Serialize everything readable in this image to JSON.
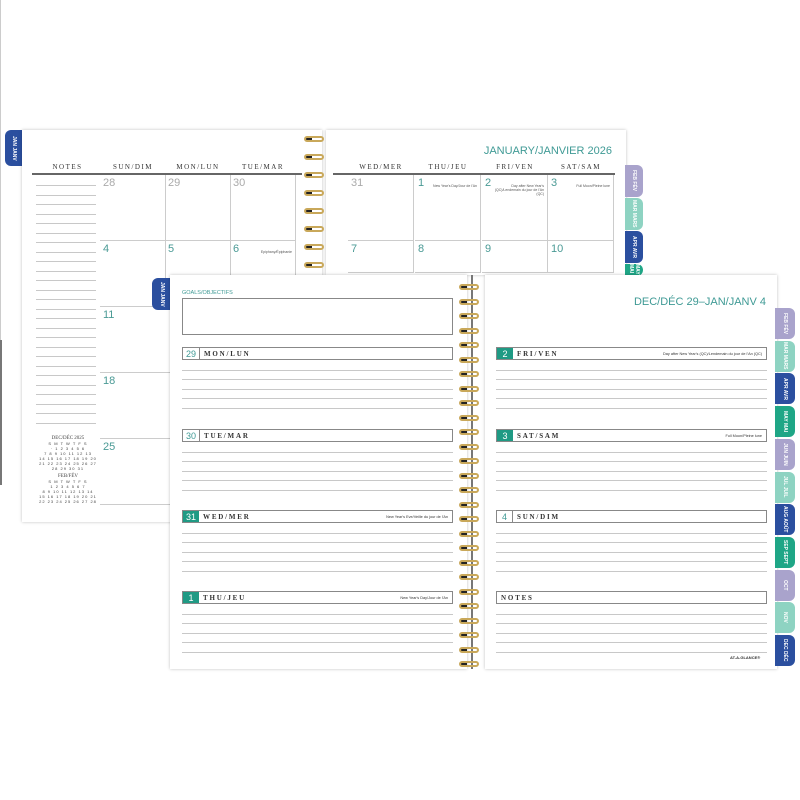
{
  "colors": {
    "lavender": "#a9a3cc",
    "mint": "#8ed3c2",
    "navy": "#2b4f9f",
    "green": "#1fa686",
    "teal_text": "#3f9a95"
  },
  "back_planner": {
    "tab_label": "JAN JANV",
    "title": "JANUARY/JANVIER 2026",
    "notes_header": "NOTES",
    "columns": [
      "SUN/DIM",
      "MON/LUN",
      "TUE/MAR",
      "WED/MER",
      "THU/JEU",
      "FRI/VEN",
      "SAT/SAM"
    ],
    "week1": [
      {
        "n": "28",
        "gray": true
      },
      {
        "n": "29",
        "gray": true
      },
      {
        "n": "30",
        "gray": true
      },
      {
        "n": "31",
        "gray": true
      },
      {
        "n": "1",
        "holiday": "New Year's Day/Jour de l'An"
      },
      {
        "n": "2",
        "holiday": "Day after New Year's (QC)/Lendemain du jour de l'An (QC)"
      },
      {
        "n": "3",
        "holiday": "Full Moon/Pleine lune"
      }
    ],
    "week2": [
      {
        "n": "4"
      },
      {
        "n": "5"
      },
      {
        "n": "6",
        "holiday": "Epiphany/Épiphanie"
      },
      {
        "n": "7"
      },
      {
        "n": "8"
      },
      {
        "n": "9"
      },
      {
        "n": "10"
      }
    ],
    "left_dates": [
      "11",
      "18",
      "25"
    ],
    "mini_calendars": [
      {
        "title": "DEC/DÉC 2025"
      },
      {
        "title": "FEB/FÉV"
      }
    ],
    "side_tabs": [
      "FEB FÉV",
      "MAR MARS",
      "APR AVR",
      "MAY MAI"
    ]
  },
  "front_planner": {
    "tab_label": "JAN JANV",
    "goals_label": "GOALS/OBJECTIFS",
    "title": "DEC/DÉC 29–JAN/JANV 4",
    "days": [
      {
        "num": "29",
        "label": "MON/LUN",
        "holiday": "",
        "filled": false
      },
      {
        "num": "30",
        "label": "TUE/MAR",
        "holiday": "",
        "filled": false
      },
      {
        "num": "31",
        "label": "WED/MER",
        "holiday": "New Year's Eve/Veille du jour de l'An",
        "filled": true
      },
      {
        "num": "1",
        "label": "THU/JEU",
        "holiday": "New Year's Day/Jour de l'An",
        "filled": true
      },
      {
        "num": "2",
        "label": "FRI/VEN",
        "holiday": "Day after New Year's (QC)/Lendemain du jour de l'An (QC)",
        "filled": true
      },
      {
        "num": "3",
        "label": "SAT/SAM",
        "holiday": "Full Moon/Pleine lune",
        "filled": true
      },
      {
        "num": "4",
        "label": "SUN/DIM",
        "holiday": "",
        "filled": false
      }
    ],
    "notes_label": "NOTES",
    "brand": "AT-A-GLANCE®",
    "side_tabs": [
      {
        "label": "FEB FÉV",
        "color": "lavender"
      },
      {
        "label": "MAR MARS",
        "color": "mint"
      },
      {
        "label": "APR AVR",
        "color": "navy"
      },
      {
        "label": "MAY MAI",
        "color": "green"
      },
      {
        "label": "JUN JUIN",
        "color": "lavender"
      },
      {
        "label": "JUL JUIL",
        "color": "mint"
      },
      {
        "label": "AUG AOÛT",
        "color": "navy"
      },
      {
        "label": "SEP SEPT",
        "color": "green"
      },
      {
        "label": "OCT",
        "color": "lavender"
      },
      {
        "label": "NOV",
        "color": "mint"
      },
      {
        "label": "DEC DÉC",
        "color": "navy"
      }
    ]
  }
}
